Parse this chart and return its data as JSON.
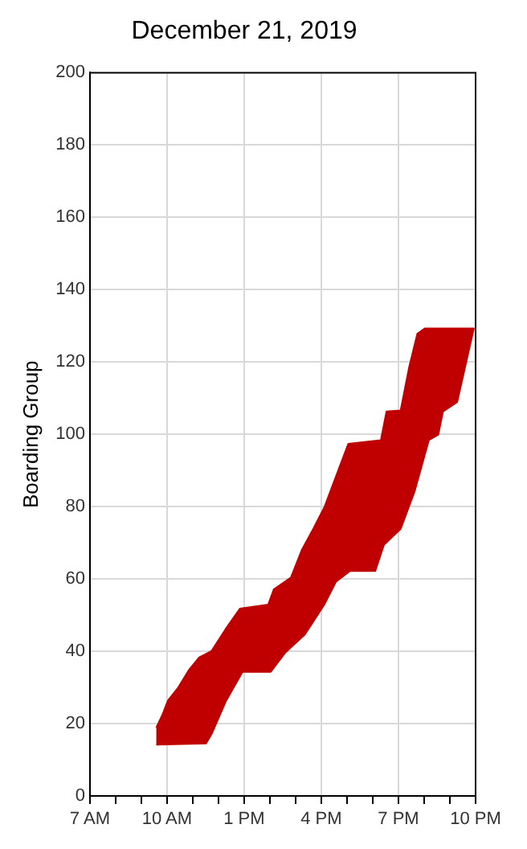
{
  "chart_data": {
    "type": "area",
    "title": "December 21, 2019",
    "ylabel": "Boarding Group",
    "xlim": [
      "2019-12-21T07:00",
      "2019-12-21T22:00"
    ],
    "xticks": [
      {
        "value": "2019-12-21T07:00",
        "label": "7 AM"
      },
      {
        "value": "2019-12-21T08:00",
        "label": null
      },
      {
        "value": "2019-12-21T09:00",
        "label": null
      },
      {
        "value": "2019-12-21T10:00",
        "label": "10 AM"
      },
      {
        "value": "2019-12-21T11:00",
        "label": null
      },
      {
        "value": "2019-12-21T12:00",
        "label": null
      },
      {
        "value": "2019-12-21T13:00",
        "label": "1 PM"
      },
      {
        "value": "2019-12-21T14:00",
        "label": null
      },
      {
        "value": "2019-12-21T15:00",
        "label": null
      },
      {
        "value": "2019-12-21T16:00",
        "label": "4 PM"
      },
      {
        "value": "2019-12-21T17:00",
        "label": null
      },
      {
        "value": "2019-12-21T18:00",
        "label": null
      },
      {
        "value": "2019-12-21T19:00",
        "label": "7 PM"
      },
      {
        "value": "2019-12-21T20:00",
        "label": null
      },
      {
        "value": "2019-12-21T21:00",
        "label": null
      },
      {
        "value": "2019-12-21T22:00",
        "label": "10 PM"
      }
    ],
    "ylim": [
      0,
      200
    ],
    "yticks": [
      0,
      20,
      40,
      60,
      80,
      100,
      120,
      140,
      160,
      180,
      200
    ],
    "grid": true,
    "series": [
      {
        "color": "#c00000",
        "x": [
          "2019-12-21T09:35",
          "2019-12-21T09:49",
          "2019-12-21T10:02",
          "2019-12-21T10:25",
          "2019-12-21T10:52",
          "2019-12-21T11:15",
          "2019-12-21T11:44",
          "2019-12-21T12:17",
          "2019-12-21T12:50",
          "2019-12-21T13:56",
          "2019-12-21T14:09",
          "2019-12-21T14:49",
          "2019-12-21T15:14",
          "2019-12-21T15:41",
          "2019-12-21T16:07",
          "2019-12-21T16:40",
          "2019-12-21T17:03",
          "2019-12-21T18:19",
          "2019-12-21T18:32",
          "2019-12-21T19:05",
          "2019-12-21T19:25",
          "2019-12-21T19:44",
          "2019-12-21T20:02",
          "2019-12-21T21:56",
          "2019-12-21T21:17",
          "2019-12-21T20:44",
          "2019-12-21T20:33",
          "2019-12-21T20:11",
          "2019-12-21T19:38",
          "2019-12-21T19:05",
          "2019-12-21T18:26",
          "2019-12-21T18:06",
          "2019-12-21T17:07",
          "2019-12-21T16:34",
          "2019-12-21T16:07",
          "2019-12-21T15:22",
          "2019-12-21T14:35",
          "2019-12-21T14:02",
          "2019-12-21T12:56",
          "2019-12-21T12:17",
          "2019-12-21T11:44",
          "2019-12-21T11:31",
          "2019-12-21T09:35"
        ],
        "values": [
          18.9,
          22.4,
          26.4,
          29.8,
          35,
          38.3,
          40.1,
          46.2,
          51.8,
          52.9,
          57.1,
          60.4,
          67.9,
          73.8,
          79.8,
          90.2,
          97.4,
          98.4,
          106.3,
          106.6,
          118.6,
          127.8,
          129.3,
          129.3,
          108.9,
          106.3,
          99.9,
          98.4,
          84.3,
          73.8,
          69.4,
          62.2,
          62.2,
          59.2,
          52.9,
          44.7,
          39.5,
          34.3,
          34.3,
          26.1,
          17.1,
          14.5,
          14.2
        ]
      }
    ]
  }
}
